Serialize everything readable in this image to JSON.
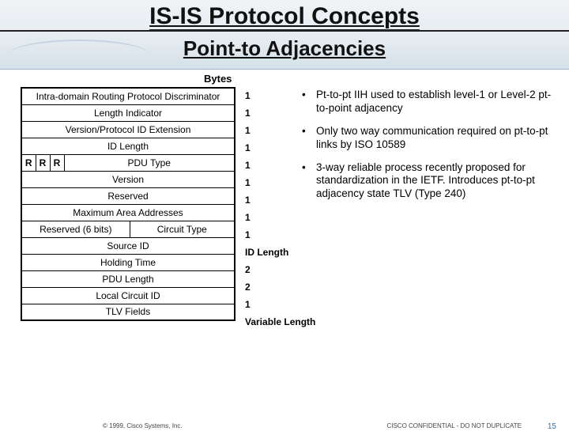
{
  "header": {
    "title_line1": "IS-IS Protocol Concepts",
    "title_line2": "Point-to Adjacencies"
  },
  "bytes_label": "Bytes",
  "pdu_fields": [
    {
      "label": "Intra-domain Routing Protocol Discriminator",
      "bytes": "1",
      "split": null
    },
    {
      "label": "Length Indicator",
      "bytes": "1",
      "split": null
    },
    {
      "label": "Version/Protocol ID Extension",
      "bytes": "1",
      "split": null
    },
    {
      "label": "ID Length",
      "bytes": "1",
      "split": null
    },
    {
      "label": "PDU Type",
      "bytes": "1",
      "split": "rrr"
    },
    {
      "label": "Version",
      "bytes": "1",
      "split": null
    },
    {
      "label": "Reserved",
      "bytes": "1",
      "split": null
    },
    {
      "label": "Maximum Area Addresses",
      "bytes": "1",
      "split": null
    },
    {
      "label": "Circuit Type",
      "bytes": "1",
      "split": "reserved6",
      "left_label": "Reserved (6 bits)"
    },
    {
      "label": "Source ID",
      "bytes": "ID Length",
      "split": null
    },
    {
      "label": "Holding Time",
      "bytes": "2",
      "split": null
    },
    {
      "label": "PDU Length",
      "bytes": "2",
      "split": null
    },
    {
      "label": "Local Circuit ID",
      "bytes": "1",
      "split": null
    },
    {
      "label": "TLV Fields",
      "bytes": "Variable Length",
      "split": null
    }
  ],
  "r_label": "R",
  "bullets": [
    "Pt-to-pt IIH used to establish level-1 or Level-2 pt-to-point adjacency",
    "Only two way communication required on pt-to-pt links by ISO 10589",
    "3-way reliable process recently proposed for standardization in the IETF. Introduces pt-to-pt adjacency state TLV (Type 240)"
  ],
  "footer": {
    "copyright": "© 1999, Cisco Systems, Inc.",
    "confidential": "CISCO CONFIDENTIAL - DO NOT DUPLICATE",
    "page": "15"
  },
  "colors": {
    "header_grad_top": "#f0f3f6",
    "header_grad_bot": "#d5e0e8",
    "text": "#111111",
    "border": "#000000",
    "page_num": "#3a6ea5"
  }
}
